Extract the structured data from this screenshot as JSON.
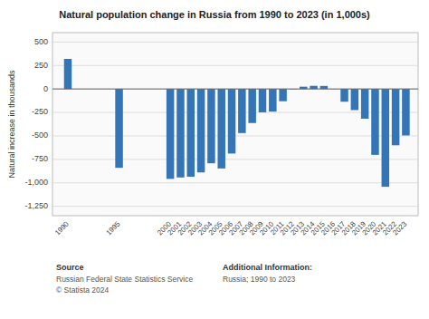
{
  "chart_data": {
    "type": "bar",
    "title": "Natural population change in Russia from 1990 to 2023 (in 1,000s)",
    "ylabel": "Natural increase in thousands",
    "x": [
      1990,
      1995,
      2000,
      2001,
      2002,
      2003,
      2004,
      2005,
      2006,
      2007,
      2008,
      2009,
      2010,
      2011,
      2012,
      2013,
      2014,
      2015,
      2016,
      2017,
      2018,
      2019,
      2020,
      2021,
      2022,
      2023
    ],
    "values": [
      320,
      -840,
      -958,
      -943,
      -935,
      -889,
      -792,
      -847,
      -688,
      -470,
      -363,
      -249,
      -241,
      -131,
      -4,
      24,
      33,
      32,
      -2,
      -136,
      -225,
      -317,
      -702,
      -1042,
      -600,
      -495
    ],
    "color": "#3375b7",
    "xlim": [
      1988.5,
      2024.2
    ],
    "xticks": [
      1990,
      1995,
      2000,
      2001,
      2002,
      2003,
      2004,
      2005,
      2006,
      2007,
      2008,
      2009,
      2010,
      2011,
      2012,
      2013,
      2014,
      2015,
      2016,
      2017,
      2018,
      2019,
      2020,
      2021,
      2022,
      2023
    ],
    "ylim": [
      -1350,
      600
    ],
    "yticks": [
      {
        "value": -1250,
        "label": "-1,250"
      },
      {
        "value": -1000,
        "label": "-1,000"
      },
      -750,
      -500,
      -250,
      0,
      250,
      500
    ],
    "grid": true,
    "annotations": [
      "Source",
      "Russian Federal State Statistics Service\n© Statista 2024",
      "Additional Information:",
      "Russia; 1990 to 2023"
    ]
  }
}
